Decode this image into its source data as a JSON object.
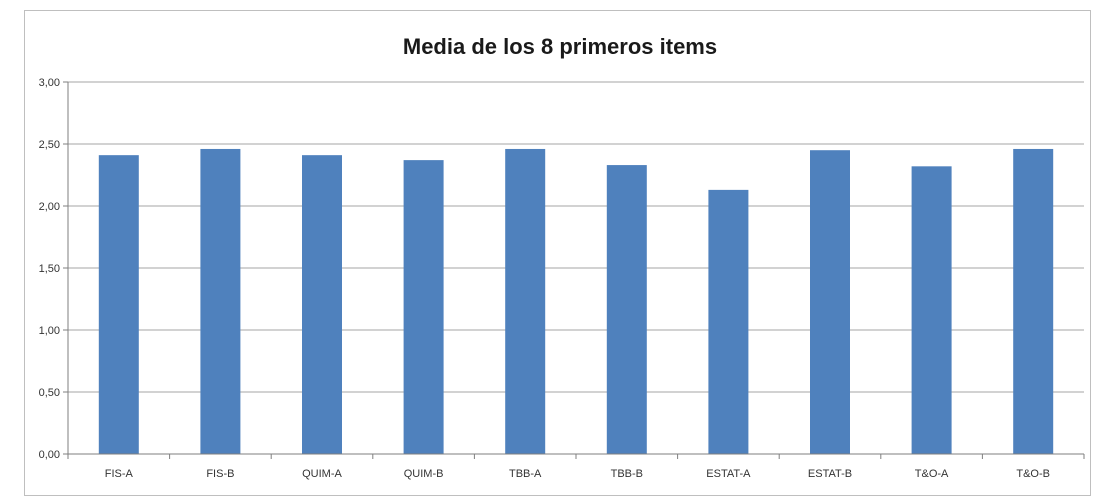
{
  "chart_data": {
    "type": "bar",
    "title": "Media de los 8 primeros items",
    "xlabel": "",
    "ylabel": "",
    "categories": [
      "FIS-A",
      "FIS-B",
      "QUIM-A",
      "QUIM-B",
      "TBB-A",
      "TBB-B",
      "ESTAT-A",
      "ESTAT-B",
      "T&O-A",
      "T&O-B"
    ],
    "values": [
      2.41,
      2.46,
      2.41,
      2.37,
      2.46,
      2.33,
      2.13,
      2.45,
      2.32,
      2.46
    ],
    "ylim": [
      0,
      3
    ],
    "yticks": [
      "0,00",
      "0,50",
      "1,00",
      "1,50",
      "2,00",
      "2,50",
      "3,00"
    ],
    "grid": true,
    "legend": "none",
    "bar_color": "#4f81bd",
    "grid_color": "#a6a6a6"
  }
}
